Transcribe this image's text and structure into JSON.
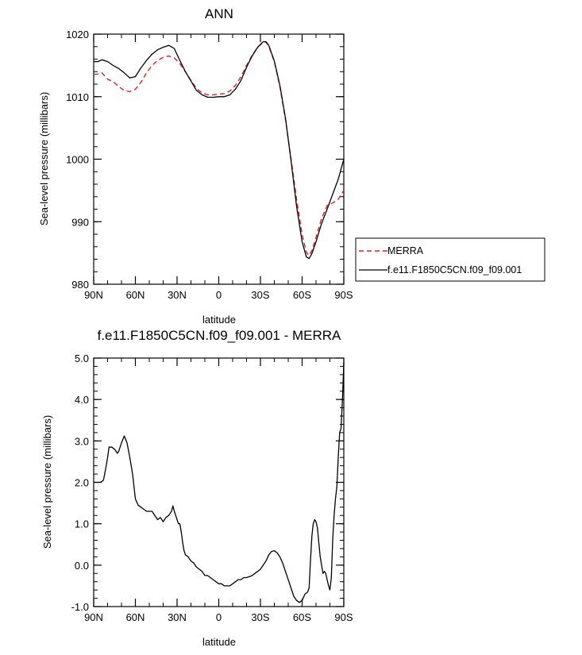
{
  "colors": {
    "merra": "#e02020",
    "model": "#000000",
    "axis": "#000000",
    "background": "#ffffff"
  },
  "chart_data": [
    {
      "type": "line",
      "title": "ANN",
      "xlabel": "latitude",
      "ylabel": "Sea-level pressure (millibars)",
      "xlim": [
        90,
        -90
      ],
      "ylim": [
        980,
        1020
      ],
      "x_ticks": [
        90,
        60,
        30,
        0,
        -30,
        -60,
        -90
      ],
      "x_tick_labels": [
        "90N",
        "60N",
        "30N",
        "0",
        "30S",
        "60S",
        "90S"
      ],
      "y_ticks": [
        980,
        990,
        1000,
        1010,
        1020
      ],
      "y_tick_labels": [
        "980",
        "990",
        "1000",
        "1010",
        "1020"
      ],
      "legend": {
        "placement": "right",
        "entries": [
          "MERRA",
          "f.e11.F1850C5CN.f09_f09.001"
        ]
      },
      "series": [
        {
          "name": "MERRA",
          "style": "dashed",
          "color": "#e02020",
          "x": [
            90,
            87,
            84,
            80,
            76,
            72,
            68,
            64,
            60,
            56,
            52,
            48,
            44,
            40,
            36,
            32,
            28,
            24,
            20,
            16,
            12,
            8,
            4,
            0,
            -4,
            -8,
            -12,
            -16,
            -20,
            -24,
            -28,
            -32,
            -34,
            -36,
            -40,
            -44,
            -48,
            -52,
            -56,
            -60,
            -63,
            -65,
            -67,
            -70,
            -74,
            -78,
            -82,
            -86,
            -90
          ],
          "y": [
            1013.6,
            1013.6,
            1013.8,
            1012.8,
            1012.4,
            1011.6,
            1011.0,
            1010.8,
            1011.2,
            1012.3,
            1013.8,
            1015.0,
            1015.8,
            1016.3,
            1016.5,
            1016.2,
            1015.3,
            1014.0,
            1012.6,
            1011.3,
            1010.6,
            1010.3,
            1010.3,
            1010.4,
            1010.5,
            1010.9,
            1011.8,
            1013.2,
            1015.0,
            1016.6,
            1017.9,
            1018.7,
            1018.7,
            1018.1,
            1015.6,
            1011.6,
            1006.4,
            1000.1,
            993.6,
            988.0,
            985.1,
            984.6,
            985.4,
            987.5,
            990.5,
            992.6,
            993.0,
            993.6,
            995.0
          ]
        },
        {
          "name": "f.e11.F1850C5CN.f09_f09.001",
          "style": "solid",
          "color": "#000000",
          "x": [
            90,
            87,
            84,
            80,
            76,
            72,
            68,
            64,
            60,
            56,
            52,
            48,
            44,
            40,
            36,
            32,
            28,
            24,
            20,
            16,
            12,
            8,
            4,
            0,
            -4,
            -8,
            -12,
            -16,
            -20,
            -24,
            -28,
            -32,
            -34,
            -36,
            -40,
            -44,
            -48,
            -52,
            -56,
            -60,
            -63,
            -65,
            -67,
            -70,
            -74,
            -78,
            -82,
            -86,
            -90
          ],
          "y": [
            1015.6,
            1015.6,
            1015.9,
            1015.6,
            1015.0,
            1014.5,
            1013.8,
            1013.0,
            1013.2,
            1014.6,
            1015.8,
            1016.8,
            1017.5,
            1017.9,
            1018.2,
            1017.7,
            1015.8,
            1014.0,
            1012.5,
            1011.0,
            1010.3,
            1009.9,
            1009.9,
            1010.0,
            1010.0,
            1010.3,
            1011.2,
            1012.6,
            1014.7,
            1016.5,
            1017.9,
            1018.8,
            1018.8,
            1018.2,
            1015.7,
            1011.8,
            1006.6,
            999.8,
            992.5,
            986.8,
            984.4,
            984.1,
            984.9,
            986.8,
            989.7,
            992.0,
            994.4,
            996.8,
            1000.0
          ]
        }
      ]
    },
    {
      "type": "line",
      "title": "f.e11.F1850C5CN.f09_f09.001 - MERRA",
      "xlabel": "latitude",
      "ylabel": "Sea-level pressure (millibars)",
      "xlim": [
        90,
        -90
      ],
      "ylim": [
        -1.0,
        5.0
      ],
      "x_ticks": [
        90,
        60,
        30,
        0,
        -30,
        -60,
        -90
      ],
      "x_tick_labels": [
        "90N",
        "60N",
        "30N",
        "0",
        "30S",
        "60S",
        "90S"
      ],
      "y_ticks": [
        -1.0,
        0.0,
        1.0,
        2.0,
        3.0,
        4.0,
        5.0
      ],
      "y_tick_labels": [
        "-1.0",
        "0.0",
        "1.0",
        "2.0",
        "3.0",
        "4.0",
        "5.0"
      ],
      "series": [
        {
          "color": "#000000",
          "style": "solid",
          "x": [
            90,
            87,
            85,
            83,
            81,
            80,
            79,
            77,
            75,
            73,
            72,
            70,
            68,
            66,
            64,
            62,
            60,
            58,
            56,
            54,
            52,
            50,
            48,
            46,
            44,
            42,
            40,
            38,
            36,
            34,
            33,
            32,
            31,
            30,
            29,
            28,
            27,
            26,
            25,
            24,
            22,
            20,
            18,
            16,
            14,
            12,
            10,
            8,
            6,
            4,
            2,
            0,
            -2,
            -4,
            -6,
            -8,
            -10,
            -12,
            -14,
            -16,
            -18,
            -20,
            -22,
            -24,
            -26,
            -28,
            -30,
            -32,
            -34,
            -36,
            -38,
            -40,
            -42,
            -44,
            -46,
            -48,
            -50,
            -52,
            -54,
            -56,
            -58,
            -60,
            -62,
            -64,
            -65,
            -66,
            -67,
            -68,
            -69,
            -70,
            -71,
            -72,
            -73,
            -74,
            -75,
            -76,
            -77,
            -78,
            -79,
            -80,
            -81,
            -82,
            -83,
            -84,
            -85,
            -86,
            -87,
            -88,
            -89,
            -90
          ],
          "y": [
            2.0,
            2.0,
            2.0,
            2.05,
            2.4,
            2.6,
            2.85,
            2.85,
            2.8,
            2.7,
            2.75,
            2.95,
            3.12,
            2.95,
            2.6,
            2.2,
            1.6,
            1.45,
            1.4,
            1.35,
            1.3,
            1.3,
            1.3,
            1.2,
            1.1,
            1.15,
            1.05,
            1.15,
            1.2,
            1.3,
            1.43,
            1.3,
            1.2,
            1.1,
            1.0,
            1.0,
            0.8,
            0.55,
            0.35,
            0.25,
            0.2,
            0.1,
            0.05,
            -0.05,
            -0.1,
            -0.15,
            -0.25,
            -0.25,
            -0.3,
            -0.35,
            -0.4,
            -0.45,
            -0.45,
            -0.5,
            -0.5,
            -0.5,
            -0.45,
            -0.4,
            -0.35,
            -0.35,
            -0.3,
            -0.3,
            -0.28,
            -0.25,
            -0.2,
            -0.15,
            -0.1,
            0.0,
            0.1,
            0.25,
            0.33,
            0.35,
            0.3,
            0.2,
            0.05,
            -0.15,
            -0.35,
            -0.55,
            -0.75,
            -0.85,
            -0.9,
            -0.85,
            -0.7,
            -0.65,
            -0.55,
            0.1,
            0.7,
            1.0,
            1.1,
            1.05,
            0.9,
            0.55,
            0.2,
            0.0,
            -0.2,
            -0.15,
            -0.2,
            -0.35,
            -0.5,
            -0.6,
            -0.3,
            0.6,
            1.2,
            1.6,
            1.9,
            2.6,
            3.2,
            3.3,
            4.0,
            4.9
          ]
        }
      ]
    }
  ]
}
